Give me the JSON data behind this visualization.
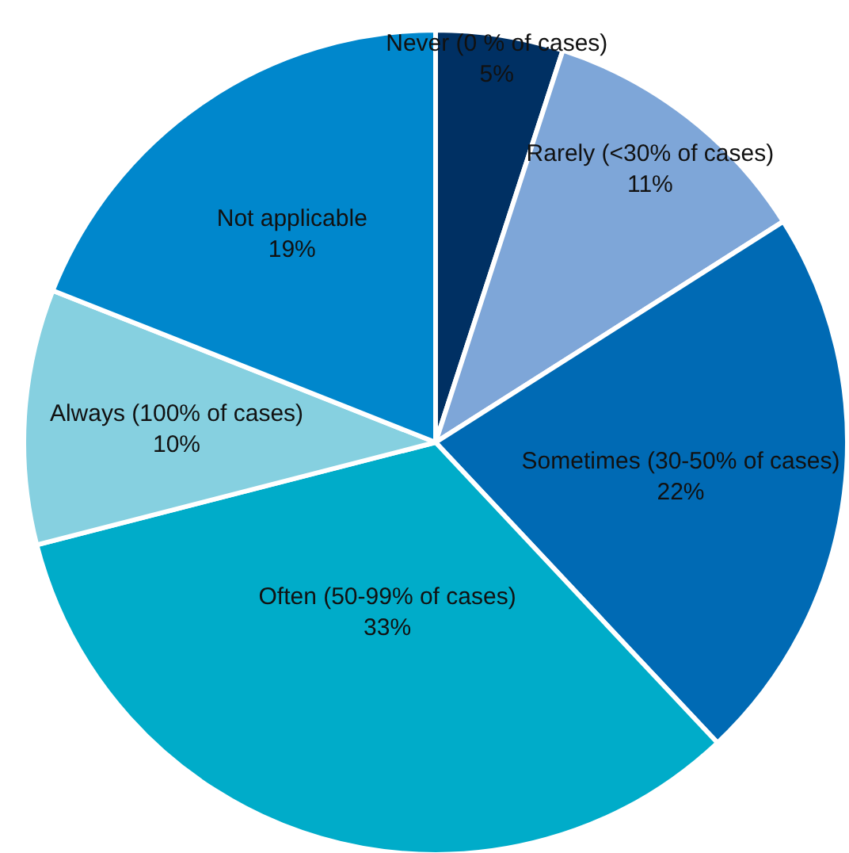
{
  "chart_data": {
    "type": "pie",
    "categories": [
      "Never (0 % of cases)",
      "Rarely (<30% of cases)",
      "Sometimes (30-50% of cases)",
      "Often (50-99% of cases)",
      "Always (100% of cases)",
      "Not applicable"
    ],
    "values": [
      5,
      11,
      22,
      33,
      10,
      19
    ],
    "value_labels": [
      "5%",
      "11%",
      "22%",
      "33%",
      "10%",
      "19%"
    ],
    "colors": [
      "#003063",
      "#7ea6d8",
      "#006ab4",
      "#00acc9",
      "#86d0e0",
      "#0087cc"
    ]
  }
}
